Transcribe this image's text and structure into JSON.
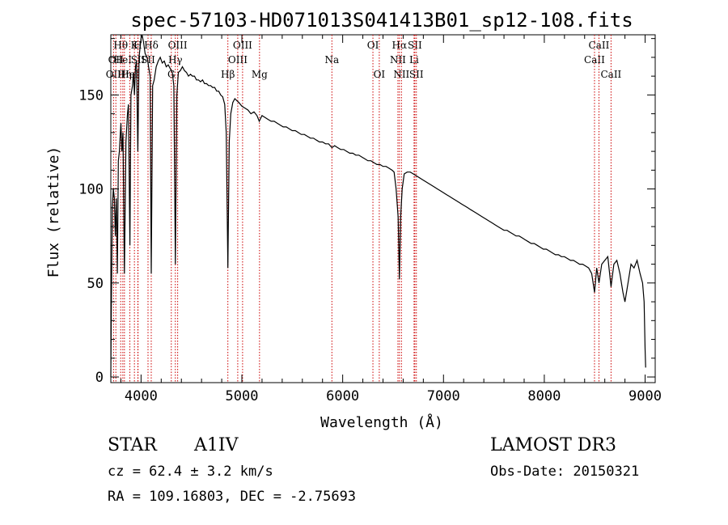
{
  "chart_data": {
    "type": "line",
    "title": "spec-57103-HD071013S041413B01_sp12-108.fits",
    "xlabel": "Wavelength (Å)",
    "ylabel": "Flux (relative)",
    "xlim": [
      3700,
      9100
    ],
    "ylim": [
      -3,
      182
    ],
    "x_ticks": [
      4000,
      5000,
      6000,
      7000,
      8000,
      9000
    ],
    "y_ticks": [
      0,
      50,
      100,
      150
    ],
    "spectrum": [
      [
        3700,
        0
      ],
      [
        3705,
        35
      ],
      [
        3715,
        90
      ],
      [
        3725,
        100
      ],
      [
        3735,
        95
      ],
      [
        3745,
        75
      ],
      [
        3755,
        95
      ],
      [
        3765,
        55
      ],
      [
        3775,
        115
      ],
      [
        3785,
        120
      ],
      [
        3795,
        130
      ],
      [
        3800,
        135
      ],
      [
        3810,
        120
      ],
      [
        3820,
        130
      ],
      [
        3835,
        55
      ],
      [
        3850,
        125
      ],
      [
        3865,
        140
      ],
      [
        3875,
        145
      ],
      [
        3889,
        70
      ],
      [
        3900,
        150
      ],
      [
        3915,
        155
      ],
      [
        3925,
        162
      ],
      [
        3934,
        150
      ],
      [
        3945,
        165
      ],
      [
        3955,
        168
      ],
      [
        3968,
        120
      ],
      [
        3980,
        170
      ],
      [
        3990,
        175
      ],
      [
        4000,
        180
      ],
      [
        4010,
        182
      ],
      [
        4025,
        178
      ],
      [
        4040,
        172
      ],
      [
        4060,
        170
      ],
      [
        4075,
        165
      ],
      [
        4090,
        160
      ],
      [
        4101,
        55
      ],
      [
        4115,
        155
      ],
      [
        4130,
        158
      ],
      [
        4150,
        165
      ],
      [
        4170,
        168
      ],
      [
        4190,
        170
      ],
      [
        4210,
        167
      ],
      [
        4230,
        168
      ],
      [
        4250,
        165
      ],
      [
        4270,
        166
      ],
      [
        4290,
        164
      ],
      [
        4310,
        162
      ],
      [
        4325,
        155
      ],
      [
        4340,
        60
      ],
      [
        4355,
        150
      ],
      [
        4370,
        162
      ],
      [
        4390,
        163
      ],
      [
        4410,
        165
      ],
      [
        4430,
        163
      ],
      [
        4450,
        162
      ],
      [
        4470,
        160
      ],
      [
        4490,
        161
      ],
      [
        4510,
        160
      ],
      [
        4530,
        160
      ],
      [
        4550,
        158
      ],
      [
        4570,
        158
      ],
      [
        4590,
        157
      ],
      [
        4610,
        158
      ],
      [
        4630,
        156
      ],
      [
        4650,
        156
      ],
      [
        4670,
        155
      ],
      [
        4690,
        155
      ],
      [
        4710,
        154
      ],
      [
        4730,
        154
      ],
      [
        4750,
        152
      ],
      [
        4770,
        152
      ],
      [
        4790,
        150
      ],
      [
        4810,
        149
      ],
      [
        4830,
        145
      ],
      [
        4845,
        130
      ],
      [
        4861,
        58
      ],
      [
        4875,
        125
      ],
      [
        4890,
        140
      ],
      [
        4910,
        146
      ],
      [
        4930,
        148
      ],
      [
        4950,
        147
      ],
      [
        4970,
        146
      ],
      [
        5000,
        144
      ],
      [
        5030,
        143
      ],
      [
        5060,
        142
      ],
      [
        5090,
        140
      ],
      [
        5120,
        141
      ],
      [
        5150,
        139
      ],
      [
        5172,
        136
      ],
      [
        5200,
        139
      ],
      [
        5230,
        138
      ],
      [
        5260,
        137
      ],
      [
        5290,
        136
      ],
      [
        5320,
        136
      ],
      [
        5350,
        135
      ],
      [
        5380,
        134
      ],
      [
        5410,
        133
      ],
      [
        5440,
        133
      ],
      [
        5470,
        132
      ],
      [
        5500,
        131
      ],
      [
        5530,
        131
      ],
      [
        5560,
        130
      ],
      [
        5590,
        129
      ],
      [
        5620,
        129
      ],
      [
        5650,
        128
      ],
      [
        5680,
        127
      ],
      [
        5710,
        127
      ],
      [
        5740,
        126
      ],
      [
        5770,
        125
      ],
      [
        5800,
        125
      ],
      [
        5830,
        124
      ],
      [
        5860,
        124
      ],
      [
        5893,
        122
      ],
      [
        5920,
        123
      ],
      [
        5950,
        122
      ],
      [
        5980,
        121
      ],
      [
        6010,
        121
      ],
      [
        6040,
        120
      ],
      [
        6070,
        119
      ],
      [
        6100,
        119
      ],
      [
        6130,
        118
      ],
      [
        6160,
        118
      ],
      [
        6190,
        117
      ],
      [
        6220,
        116
      ],
      [
        6250,
        115
      ],
      [
        6280,
        115
      ],
      [
        6310,
        114
      ],
      [
        6340,
        113
      ],
      [
        6370,
        113
      ],
      [
        6400,
        112
      ],
      [
        6430,
        112
      ],
      [
        6460,
        111
      ],
      [
        6490,
        110
      ],
      [
        6510,
        109
      ],
      [
        6530,
        100
      ],
      [
        6550,
        85
      ],
      [
        6563,
        52
      ],
      [
        6575,
        85
      ],
      [
        6590,
        100
      ],
      [
        6610,
        108
      ],
      [
        6640,
        109
      ],
      [
        6670,
        109
      ],
      [
        6700,
        108
      ],
      [
        6730,
        107
      ],
      [
        6760,
        106
      ],
      [
        6790,
        105
      ],
      [
        6820,
        104
      ],
      [
        6850,
        103
      ],
      [
        6880,
        102
      ],
      [
        6910,
        101
      ],
      [
        6940,
        100
      ],
      [
        6970,
        99
      ],
      [
        7000,
        98
      ],
      [
        7030,
        97
      ],
      [
        7060,
        96
      ],
      [
        7090,
        95
      ],
      [
        7120,
        94
      ],
      [
        7150,
        93
      ],
      [
        7180,
        92
      ],
      [
        7210,
        91
      ],
      [
        7240,
        90
      ],
      [
        7270,
        89
      ],
      [
        7300,
        88
      ],
      [
        7330,
        87
      ],
      [
        7360,
        86
      ],
      [
        7390,
        85
      ],
      [
        7420,
        84
      ],
      [
        7450,
        83
      ],
      [
        7480,
        82
      ],
      [
        7510,
        81
      ],
      [
        7540,
        80
      ],
      [
        7570,
        79
      ],
      [
        7600,
        78
      ],
      [
        7630,
        78
      ],
      [
        7660,
        77
      ],
      [
        7690,
        76
      ],
      [
        7720,
        75
      ],
      [
        7750,
        75
      ],
      [
        7780,
        74
      ],
      [
        7810,
        73
      ],
      [
        7840,
        72
      ],
      [
        7870,
        71
      ],
      [
        7900,
        71
      ],
      [
        7930,
        70
      ],
      [
        7960,
        69
      ],
      [
        7990,
        68
      ],
      [
        8020,
        68
      ],
      [
        8050,
        67
      ],
      [
        8080,
        66
      ],
      [
        8110,
        65
      ],
      [
        8140,
        65
      ],
      [
        8170,
        64
      ],
      [
        8200,
        64
      ],
      [
        8230,
        63
      ],
      [
        8260,
        62
      ],
      [
        8290,
        62
      ],
      [
        8320,
        61
      ],
      [
        8350,
        60
      ],
      [
        8380,
        60
      ],
      [
        8410,
        59
      ],
      [
        8440,
        58
      ],
      [
        8470,
        55
      ],
      [
        8498,
        45
      ],
      [
        8520,
        58
      ],
      [
        8542,
        50
      ],
      [
        8570,
        60
      ],
      [
        8600,
        62
      ],
      [
        8630,
        64
      ],
      [
        8662,
        48
      ],
      [
        8690,
        60
      ],
      [
        8720,
        62
      ],
      [
        8750,
        55
      ],
      [
        8780,
        45
      ],
      [
        8800,
        40
      ],
      [
        8830,
        50
      ],
      [
        8860,
        60
      ],
      [
        8890,
        58
      ],
      [
        8920,
        62
      ],
      [
        8950,
        55
      ],
      [
        8975,
        50
      ],
      [
        8990,
        40
      ],
      [
        9000,
        15
      ],
      [
        9005,
        5
      ]
    ],
    "line_markers": [
      {
        "wave": 3727,
        "label": "OII",
        "row": 2
      },
      {
        "wave": 3750,
        "label": "OII",
        "row": 1
      },
      {
        "wave": 3798,
        "label": "Hθ",
        "row": 0
      },
      {
        "wave": 3819,
        "label": "HeI",
        "row": 1
      },
      {
        "wave": 3835,
        "label": "Hη",
        "row": 2
      },
      {
        "wave": 3889,
        "label": "HeI",
        "row": 2
      },
      {
        "wave": 3934,
        "label": "K",
        "row": 0
      },
      {
        "wave": 3968,
        "label": "H",
        "row": 0
      },
      {
        "wave": 3970,
        "label": "SII",
        "row": 1
      },
      {
        "wave": 4101,
        "label": "Hδ",
        "row": 0
      },
      {
        "wave": 4069,
        "label": "SII",
        "row": 1
      },
      {
        "wave": 4300,
        "label": "G",
        "row": 2
      },
      {
        "wave": 4340,
        "label": "Hγ",
        "row": 1
      },
      {
        "wave": 4363,
        "label": "OIII",
        "row": 0
      },
      {
        "wave": 4861,
        "label": "Hβ",
        "row": 2
      },
      {
        "wave": 4959,
        "label": "OIII",
        "row": 1
      },
      {
        "wave": 5007,
        "label": "OIII",
        "row": 0
      },
      {
        "wave": 5175,
        "label": "Mg",
        "row": 2
      },
      {
        "wave": 5893,
        "label": "Na",
        "row": 1
      },
      {
        "wave": 6300,
        "label": "OI",
        "row": 0
      },
      {
        "wave": 6363,
        "label": "OI",
        "row": 2
      },
      {
        "wave": 6548,
        "label": "NII",
        "row": 1
      },
      {
        "wave": 6563,
        "label": "Hα",
        "row": 0
      },
      {
        "wave": 6583,
        "label": "NII",
        "row": 2
      },
      {
        "wave": 6708,
        "label": "Li",
        "row": 1
      },
      {
        "wave": 6716,
        "label": "SII",
        "row": 0
      },
      {
        "wave": 6731,
        "label": "SII",
        "row": 2
      },
      {
        "wave": 8498,
        "label": "CaII",
        "row": 1
      },
      {
        "wave": 8542,
        "label": "CaII",
        "row": 0
      },
      {
        "wave": 8662,
        "label": "CaII",
        "row": 2
      }
    ]
  },
  "info": {
    "object_type": "STAR",
    "subclass": "A1IV",
    "survey": "LAMOST DR3",
    "cz": "cz = 62.4 ± 3.2 km/s",
    "obs_date": "Obs-Date: 20150321",
    "coords": "RA = 109.16803, DEC =  -2.75693"
  },
  "colors": {
    "line_marker": "#cc0000",
    "spectrum": "#000000",
    "axis": "#000000"
  }
}
